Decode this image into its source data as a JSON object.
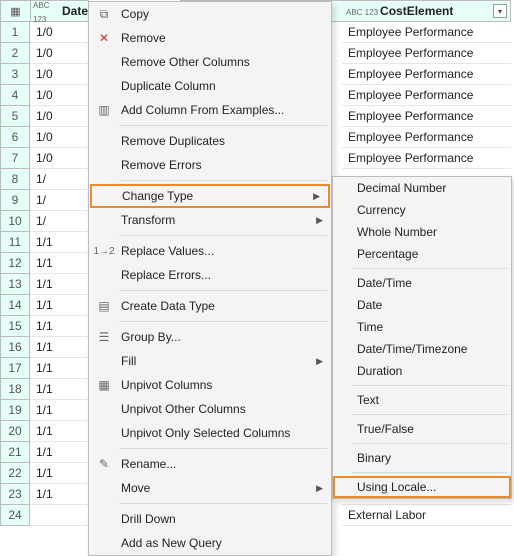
{
  "colors": {
    "header_bg": "#e6fff5",
    "highlight_border": "#e78b2f",
    "menu_bg": "#f4f4f4",
    "border": "#bcbcbc"
  },
  "columns": {
    "date": {
      "prefix": "ABC 123",
      "label": "Date"
    },
    "cost": {
      "prefix": "ABC 123",
      "label": "CostElement"
    }
  },
  "row_numbers": [
    "1",
    "2",
    "3",
    "4",
    "5",
    "6",
    "7",
    "8",
    "9",
    "10",
    "11",
    "12",
    "13",
    "14",
    "15",
    "16",
    "17",
    "18",
    "19",
    "20",
    "21",
    "22",
    "23",
    "24"
  ],
  "date_cells": [
    "1/0",
    "1/0",
    "1/0",
    "1/0",
    "1/0",
    "1/0",
    "1/0",
    "1/",
    "1/",
    "1/",
    "1/1",
    "1/1",
    "1/1",
    "1/1",
    "1/1",
    "1/1",
    "1/1",
    "1/1",
    "1/1",
    "1/1",
    "1/1",
    "1/1",
    "1/1",
    ""
  ],
  "cost_cells": [
    "Employee Performance",
    "Employee Performance",
    "Employee Performance",
    "Employee Performance",
    "Employee Performance",
    "Employee Performance",
    "Employee Performance",
    "",
    "",
    "",
    "",
    "",
    "",
    "",
    "",
    "",
    "",
    "",
    "",
    "",
    "",
    "",
    "",
    "External Labor"
  ],
  "menu": {
    "copy": "Copy",
    "remove": "Remove",
    "remove_other": "Remove Other Columns",
    "duplicate": "Duplicate Column",
    "add_examples": "Add Column From Examples...",
    "remove_dup": "Remove Duplicates",
    "remove_err": "Remove Errors",
    "change_type": "Change Type",
    "transform": "Transform",
    "replace_vals": "Replace Values...",
    "replace_errs": "Replace Errors...",
    "create_dt": "Create Data Type",
    "group_by": "Group By...",
    "fill": "Fill",
    "unpivot": "Unpivot Columns",
    "unpivot_other": "Unpivot Other Columns",
    "unpivot_sel": "Unpivot Only Selected Columns",
    "rename": "Rename...",
    "move": "Move",
    "drill": "Drill Down",
    "add_query": "Add as New Query"
  },
  "submenu": {
    "decimal": "Decimal Number",
    "currency": "Currency",
    "whole": "Whole Number",
    "pct": "Percentage",
    "datetime": "Date/Time",
    "date": "Date",
    "time": "Time",
    "dttz": "Date/Time/Timezone",
    "duration": "Duration",
    "text": "Text",
    "tf": "True/False",
    "binary": "Binary",
    "locale": "Using Locale..."
  }
}
